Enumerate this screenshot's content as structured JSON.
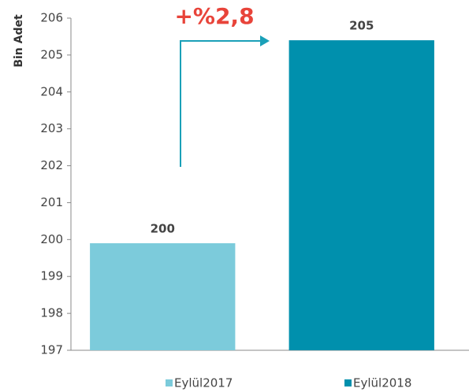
{
  "chart_data": {
    "type": "bar",
    "y_label": "Bin Adet",
    "annotation": "+%2,8",
    "series": [
      {
        "name": "Eylül2017",
        "color": "#7ccbdb",
        "values": [
          199.9
        ],
        "value_labels": [
          "200"
        ]
      },
      {
        "name": "Eylül2018",
        "color": "#0090ad",
        "values": [
          205.4
        ],
        "value_labels": [
          "205"
        ]
      }
    ],
    "ylim": [
      197,
      206
    ],
    "yticks": [
      197,
      198,
      199,
      200,
      201,
      202,
      203,
      204,
      205,
      206
    ],
    "legend": "bottom"
  }
}
